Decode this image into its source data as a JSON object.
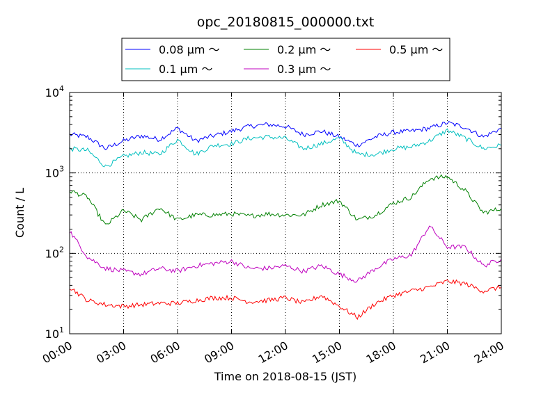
{
  "chart_data": {
    "type": "line",
    "title": "opc_20180815_000000.txt",
    "xlabel": "Time on 2018-08-15 (JST)",
    "ylabel": "Count / L",
    "y_scale": "log",
    "grid": true,
    "legend_placement": "top-center",
    "xlim": [
      "00:00",
      "24:00"
    ],
    "ylim": [
      10,
      10000
    ],
    "x_ticks": [
      "00:00",
      "03:00",
      "06:00",
      "09:00",
      "12:00",
      "15:00",
      "18:00",
      "21:00",
      "24:00"
    ],
    "y_ticks": [
      {
        "value": 10,
        "base": "10",
        "exp": "1"
      },
      {
        "value": 100,
        "base": "10",
        "exp": "2"
      },
      {
        "value": 1000,
        "base": "10",
        "exp": "3"
      },
      {
        "value": 10000,
        "base": "10",
        "exp": "4"
      }
    ],
    "x": [
      "00:00",
      "01:00",
      "02:00",
      "03:00",
      "04:00",
      "05:00",
      "06:00",
      "07:00",
      "08:00",
      "09:00",
      "10:00",
      "11:00",
      "12:00",
      "13:00",
      "14:00",
      "15:00",
      "16:00",
      "17:00",
      "18:00",
      "19:00",
      "20:00",
      "21:00",
      "22:00",
      "23:00",
      "24:00"
    ],
    "series": [
      {
        "name": "0.08 μm ～",
        "color": "#0000ff",
        "values": [
          3000,
          2800,
          2000,
          2500,
          2900,
          2600,
          3600,
          2500,
          2900,
          3300,
          3800,
          4000,
          3800,
          3000,
          3300,
          2800,
          2200,
          2800,
          3200,
          3300,
          3600,
          4200,
          3700,
          2800,
          3600
        ]
      },
      {
        "name": "0.1 μm ～",
        "color": "#00bfbf",
        "values": [
          2000,
          1900,
          1200,
          1600,
          1800,
          1700,
          2600,
          1700,
          2200,
          2300,
          2700,
          2800,
          2700,
          2000,
          2300,
          2700,
          1700,
          1700,
          2000,
          2100,
          2500,
          3400,
          2700,
          2000,
          2200
        ]
      },
      {
        "name": "0.2 μm ～",
        "color": "#008000",
        "values": [
          600,
          500,
          220,
          340,
          260,
          370,
          260,
          300,
          300,
          310,
          290,
          310,
          300,
          300,
          400,
          450,
          260,
          300,
          420,
          500,
          850,
          900,
          600,
          320,
          360
        ]
      },
      {
        "name": "0.3 μm ～",
        "color": "#bf00bf",
        "values": [
          190,
          90,
          65,
          60,
          55,
          65,
          60,
          70,
          75,
          80,
          65,
          65,
          70,
          60,
          70,
          55,
          45,
          65,
          85,
          95,
          220,
          120,
          120,
          70,
          85
        ]
      },
      {
        "name": "0.5 μm ～",
        "color": "#ff0000",
        "values": [
          38,
          26,
          23,
          22,
          23,
          24,
          24,
          26,
          28,
          28,
          25,
          26,
          28,
          24,
          30,
          22,
          16,
          24,
          30,
          34,
          38,
          45,
          42,
          34,
          38
        ]
      }
    ]
  }
}
